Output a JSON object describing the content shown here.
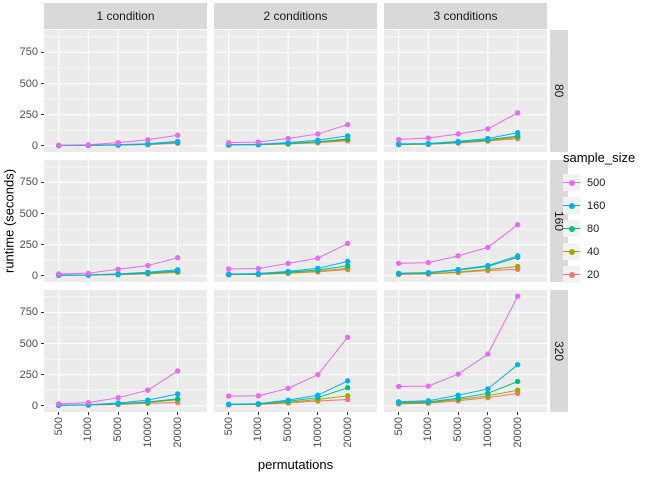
{
  "figure": {
    "y_axis_title": "runtime (seconds)",
    "x_axis_title": "permutations",
    "col_facets": [
      "1 condition",
      "2 conditions",
      "3 conditions"
    ],
    "row_facets": [
      "80",
      "160",
      "320"
    ],
    "y_ticks": [
      0,
      250,
      500,
      750
    ],
    "x_ticks": [
      "500",
      "1000",
      "5000",
      "10000",
      "20000"
    ]
  },
  "legend": {
    "title": "sample_size",
    "entries": [
      {
        "label": "500",
        "color": "#E76BF3"
      },
      {
        "label": "160",
        "color": "#00B0F6"
      },
      {
        "label": "80",
        "color": "#00BF7D"
      },
      {
        "label": "40",
        "color": "#A3A500"
      },
      {
        "label": "20",
        "color": "#F8766D"
      }
    ]
  },
  "colors": {
    "panel_bg": "#EBEBEB",
    "strip_bg": "#D9D9D9",
    "gridline": "#FFFFFF",
    "tick_text": "#4D4D4D",
    "background": "#FFFFFF"
  },
  "chart_data": {
    "type": "line",
    "x": [
      500,
      1000,
      5000,
      10000,
      20000
    ],
    "xlabel": "permutations",
    "ylabel": "runtime (seconds)",
    "ylim": [
      -50,
      930
    ],
    "y_major_breaks": [
      0,
      250,
      500,
      750
    ],
    "y_minor_breaks": [
      125,
      375,
      625,
      875
    ],
    "grid": true,
    "legend_title": "sample_size",
    "legend_position": "right",
    "facet_cols": [
      "1 condition",
      "2 conditions",
      "3 conditions"
    ],
    "facet_rows": [
      "80",
      "160",
      "320"
    ],
    "series_order_drawn": [
      "20",
      "40",
      "80",
      "160",
      "500"
    ],
    "facets": [
      {
        "row": "80",
        "col": "1 condition",
        "series": [
          {
            "name": "500",
            "values": [
              5,
              8,
              25,
              48,
              85
            ]
          },
          {
            "name": "160",
            "values": [
              3,
              4,
              9,
              16,
              35
            ]
          },
          {
            "name": "80",
            "values": [
              2,
              3,
              7,
              12,
              28
            ]
          },
          {
            "name": "40",
            "values": [
              2,
              3,
              6,
              11,
              30
            ]
          },
          {
            "name": "20",
            "values": [
              1,
              2,
              5,
              9,
              20
            ]
          }
        ]
      },
      {
        "row": "80",
        "col": "2 conditions",
        "series": [
          {
            "name": "500",
            "values": [
              25,
              30,
              58,
              95,
              170
            ]
          },
          {
            "name": "160",
            "values": [
              9,
              12,
              25,
              45,
              80
            ]
          },
          {
            "name": "80",
            "values": [
              7,
              10,
              18,
              32,
              55
            ]
          },
          {
            "name": "40",
            "values": [
              6,
              9,
              16,
              28,
              48
            ]
          },
          {
            "name": "20",
            "values": [
              5,
              8,
              14,
              24,
              40
            ]
          }
        ]
      },
      {
        "row": "80",
        "col": "3 conditions",
        "series": [
          {
            "name": "500",
            "values": [
              50,
              62,
              95,
              135,
              265
            ]
          },
          {
            "name": "160",
            "values": [
              15,
              18,
              35,
              58,
              105
            ]
          },
          {
            "name": "80",
            "values": [
              12,
              15,
              28,
              48,
              78
            ]
          },
          {
            "name": "40",
            "values": [
              10,
              13,
              25,
              42,
              68
            ]
          },
          {
            "name": "20",
            "values": [
              9,
              12,
              22,
              38,
              58
            ]
          }
        ]
      },
      {
        "row": "160",
        "col": "1 condition",
        "series": [
          {
            "name": "500",
            "values": [
              15,
              20,
              52,
              82,
              145
            ]
          },
          {
            "name": "160",
            "values": [
              5,
              7,
              15,
              28,
              48
            ]
          },
          {
            "name": "80",
            "values": [
              4,
              6,
              12,
              22,
              38
            ]
          },
          {
            "name": "40",
            "values": [
              3,
              5,
              10,
              18,
              32
            ]
          },
          {
            "name": "20",
            "values": [
              3,
              4,
              8,
              15,
              28
            ]
          }
        ]
      },
      {
        "row": "160",
        "col": "2 conditions",
        "series": [
          {
            "name": "500",
            "values": [
              55,
              58,
              100,
              142,
              260
            ]
          },
          {
            "name": "160",
            "values": [
              14,
              18,
              35,
              60,
              115
            ]
          },
          {
            "name": "80",
            "values": [
              11,
              14,
              28,
              46,
              80
            ]
          },
          {
            "name": "40",
            "values": [
              9,
              12,
              22,
              36,
              60
            ]
          },
          {
            "name": "20",
            "values": [
              8,
              10,
              20,
              32,
              50
            ]
          }
        ]
      },
      {
        "row": "160",
        "col": "3 conditions",
        "series": [
          {
            "name": "500",
            "values": [
              100,
              106,
              160,
              228,
              410
            ]
          },
          {
            "name": "160",
            "values": [
              20,
              26,
              50,
              82,
              160
            ]
          },
          {
            "name": "80",
            "values": [
              18,
              23,
              45,
              75,
              148
            ]
          },
          {
            "name": "40",
            "values": [
              12,
              16,
              30,
              50,
              75
            ]
          },
          {
            "name": "20",
            "values": [
              11,
              14,
              26,
              42,
              52
            ]
          }
        ]
      },
      {
        "row": "320",
        "col": "1 condition",
        "series": [
          {
            "name": "500",
            "values": [
              15,
              25,
              65,
              125,
              280
            ]
          },
          {
            "name": "160",
            "values": [
              5,
              8,
              22,
              45,
              95
            ]
          },
          {
            "name": "80",
            "values": [
              4,
              7,
              16,
              30,
              55
            ]
          },
          {
            "name": "40",
            "values": [
              4,
              6,
              14,
              27,
              48
            ]
          },
          {
            "name": "20",
            "values": [
              3,
              5,
              10,
              20,
              26
            ]
          }
        ]
      },
      {
        "row": "320",
        "col": "2 conditions",
        "series": [
          {
            "name": "500",
            "values": [
              78,
              80,
              140,
              250,
              550
            ]
          },
          {
            "name": "160",
            "values": [
              13,
              17,
              45,
              85,
              200
            ]
          },
          {
            "name": "80",
            "values": [
              11,
              15,
              36,
              66,
              145
            ]
          },
          {
            "name": "40",
            "values": [
              9,
              12,
              28,
              50,
              80
            ]
          },
          {
            "name": "20",
            "values": [
              8,
              10,
              22,
              38,
              50
            ]
          }
        ]
      },
      {
        "row": "320",
        "col": "3 conditions",
        "series": [
          {
            "name": "500",
            "values": [
              155,
              158,
              255,
              415,
              880
            ]
          },
          {
            "name": "160",
            "values": [
              32,
              40,
              85,
              135,
              330
            ]
          },
          {
            "name": "80",
            "values": [
              25,
              31,
              60,
              100,
              195
            ]
          },
          {
            "name": "40",
            "values": [
              19,
              25,
              50,
              80,
              125
            ]
          },
          {
            "name": "20",
            "values": [
              15,
              20,
              40,
              65,
              100
            ]
          }
        ]
      }
    ],
    "series_colors": {
      "500": "#E76BF3",
      "160": "#00B0F6",
      "80": "#00BF7D",
      "40": "#A3A500",
      "20": "#F8766D"
    }
  }
}
